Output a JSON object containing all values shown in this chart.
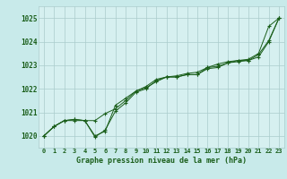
{
  "title": "Graphe pression niveau de la mer (hPa)",
  "background_color": "#c8eaea",
  "plot_bg_color": "#d6f0f0",
  "grid_color": "#aacccc",
  "line_color": "#1a5e1a",
  "x_ticks": [
    0,
    1,
    2,
    3,
    4,
    5,
    6,
    7,
    8,
    9,
    10,
    11,
    12,
    13,
    14,
    15,
    16,
    17,
    18,
    19,
    20,
    21,
    22,
    23
  ],
  "ylim": [
    1019.5,
    1025.5
  ],
  "yticks": [
    1020,
    1021,
    1022,
    1023,
    1024,
    1025
  ],
  "line1": [
    1020.0,
    1020.4,
    1020.65,
    1020.65,
    1020.65,
    1020.0,
    1020.2,
    1021.3,
    1021.6,
    1021.9,
    1022.05,
    1022.3,
    1022.5,
    1022.5,
    1022.6,
    1022.6,
    1022.85,
    1022.9,
    1023.1,
    1023.2,
    1023.2,
    1023.45,
    1024.05,
    1025.0
  ],
  "line2": [
    1020.0,
    1020.4,
    1020.65,
    1020.7,
    1020.65,
    1020.65,
    1020.95,
    1021.15,
    1021.5,
    1021.9,
    1022.1,
    1022.4,
    1022.5,
    1022.55,
    1022.65,
    1022.7,
    1022.9,
    1023.05,
    1023.15,
    1023.2,
    1023.25,
    1023.5,
    1024.65,
    1025.0
  ],
  "line3": [
    1020.0,
    1020.4,
    1020.65,
    1020.7,
    1020.65,
    1019.95,
    1020.25,
    1021.05,
    1021.4,
    1021.85,
    1022.0,
    1022.35,
    1022.5,
    1022.5,
    1022.6,
    1022.6,
    1022.9,
    1022.95,
    1023.1,
    1023.15,
    1023.2,
    1023.35,
    1024.0,
    1025.0
  ]
}
